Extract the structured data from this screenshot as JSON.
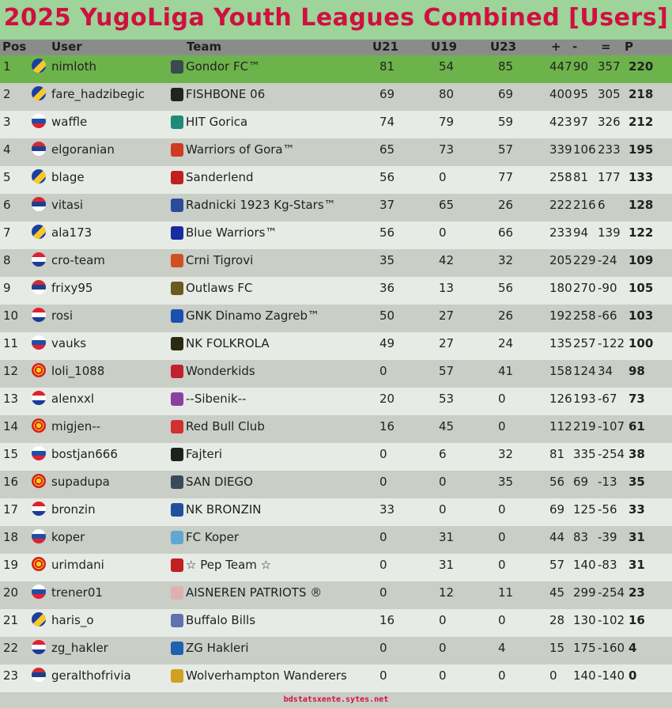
{
  "title": "2025 YugoLiga Youth Leagues Combined [Users]",
  "headers": {
    "pos": "Pos",
    "user": "User",
    "team": "Team",
    "u21": "U21",
    "u19": "U19",
    "u23": "U23",
    "plus": "+",
    "minus": "-",
    "diff": "=",
    "points": "P"
  },
  "flag_colors": {
    "BA": [
      "#1d3e9e",
      "#f7c82c"
    ],
    "SI": [
      "#ffffff",
      "#1d4fa8",
      "#e02030"
    ],
    "RS": [
      "#d32a32",
      "#1d3f8f",
      "#ffffff"
    ],
    "HR": [
      "#e02030",
      "#ffffff",
      "#1a3b9a"
    ],
    "MK": [
      "#d82020",
      "#f8d010"
    ]
  },
  "rows": [
    {
      "pos": "1",
      "flag": "BA",
      "user": "nimloth",
      "team": "Gondor FC™",
      "icon": "#3a4a50",
      "u21": "81",
      "u19": "54",
      "u23": "85",
      "plus": "447",
      "minus": "90",
      "diff": "357",
      "p": "220"
    },
    {
      "pos": "2",
      "flag": "BA",
      "user": "fare_hadzibegic",
      "team": "FISHBONE 06",
      "icon": "#222222",
      "u21": "69",
      "u19": "80",
      "u23": "69",
      "plus": "400",
      "minus": "95",
      "diff": "305",
      "p": "218"
    },
    {
      "pos": "3",
      "flag": "SI",
      "user": "waffle",
      "team": "HIT Gorica",
      "icon": "#1e8a78",
      "u21": "74",
      "u19": "79",
      "u23": "59",
      "plus": "423",
      "minus": "97",
      "diff": "326",
      "p": "212"
    },
    {
      "pos": "4",
      "flag": "RS",
      "user": "elgoranian",
      "team": "Warriors of Gora™",
      "icon": "#d03a20",
      "u21": "65",
      "u19": "73",
      "u23": "57",
      "plus": "339",
      "minus": "106",
      "diff": "233",
      "p": "195"
    },
    {
      "pos": "5",
      "flag": "BA",
      "user": "blage",
      "team": "Sanderlend",
      "icon": "#c02020",
      "u21": "56",
      "u19": "0",
      "u23": "77",
      "plus": "258",
      "minus": "81",
      "diff": "177",
      "p": "133"
    },
    {
      "pos": "6",
      "flag": "RS",
      "user": "vitasi",
      "team": "Radnicki 1923 Kg-Stars™",
      "icon": "#2a4a9a",
      "u21": "37",
      "u19": "65",
      "u23": "26",
      "plus": "222",
      "minus": "216",
      "diff": "6",
      "p": "128"
    },
    {
      "pos": "7",
      "flag": "BA",
      "user": "ala173",
      "team": "Blue Warriors™",
      "icon": "#1a2aa0",
      "u21": "56",
      "u19": "0",
      "u23": "66",
      "plus": "233",
      "minus": "94",
      "diff": "139",
      "p": "122"
    },
    {
      "pos": "8",
      "flag": "HR",
      "user": "cro-team",
      "team": "Crni Tigrovi",
      "icon": "#d05020",
      "u21": "35",
      "u19": "42",
      "u23": "32",
      "plus": "205",
      "minus": "229",
      "diff": "-24",
      "p": "109"
    },
    {
      "pos": "9",
      "flag": "RS",
      "user": "frixy95",
      "team": "Outlaws FC",
      "icon": "#6a5a20",
      "u21": "36",
      "u19": "13",
      "u23": "56",
      "plus": "180",
      "minus": "270",
      "diff": "-90",
      "p": "105"
    },
    {
      "pos": "10",
      "flag": "HR",
      "user": "rosi",
      "team": "GNK Dinamo Zagreb™",
      "icon": "#1a50b0",
      "u21": "50",
      "u19": "27",
      "u23": "26",
      "plus": "192",
      "minus": "258",
      "diff": "-66",
      "p": "103"
    },
    {
      "pos": "11",
      "flag": "SI",
      "user": "vauks",
      "team": "NK FOLKROLA",
      "icon": "#2a2a10",
      "u21": "49",
      "u19": "27",
      "u23": "24",
      "plus": "135",
      "minus": "257",
      "diff": "-122",
      "p": "100"
    },
    {
      "pos": "12",
      "flag": "MK",
      "user": "loli_1088",
      "team": "Wonderkids",
      "icon": "#c02030",
      "u21": "0",
      "u19": "57",
      "u23": "41",
      "plus": "158",
      "minus": "124",
      "diff": "34",
      "p": "98"
    },
    {
      "pos": "13",
      "flag": "HR",
      "user": "alenxxl",
      "team": "--Sibenik--",
      "icon": "#8a40a0",
      "u21": "20",
      "u19": "53",
      "u23": "0",
      "plus": "126",
      "minus": "193",
      "diff": "-67",
      "p": "73"
    },
    {
      "pos": "14",
      "flag": "MK",
      "user": "migjen--",
      "team": "Red Bull Club",
      "icon": "#d03030",
      "u21": "16",
      "u19": "45",
      "u23": "0",
      "plus": "112",
      "minus": "219",
      "diff": "-107",
      "p": "61"
    },
    {
      "pos": "15",
      "flag": "SI",
      "user": "bostjan666",
      "team": "Fajteri",
      "icon": "#202020",
      "u21": "0",
      "u19": "6",
      "u23": "32",
      "plus": "81",
      "minus": "335",
      "diff": "-254",
      "p": "38"
    },
    {
      "pos": "16",
      "flag": "MK",
      "user": "supadupa",
      "team": "SAN DIEGO",
      "icon": "#3a4a5a",
      "u21": "0",
      "u19": "0",
      "u23": "35",
      "plus": "56",
      "minus": "69",
      "diff": "-13",
      "p": "35"
    },
    {
      "pos": "17",
      "flag": "HR",
      "user": "bronzin",
      "team": "NK BRONZIN",
      "icon": "#2050a0",
      "u21": "33",
      "u19": "0",
      "u23": "0",
      "plus": "69",
      "minus": "125",
      "diff": "-56",
      "p": "33"
    },
    {
      "pos": "18",
      "flag": "SI",
      "user": "koper",
      "team": "FC Koper",
      "icon": "#60a8d0",
      "u21": "0",
      "u19": "31",
      "u23": "0",
      "plus": "44",
      "minus": "83",
      "diff": "-39",
      "p": "31"
    },
    {
      "pos": "19",
      "flag": "MK",
      "user": "urimdani",
      "team": "☆ Pep Team ☆",
      "icon": "#c02020",
      "u21": "0",
      "u19": "31",
      "u23": "0",
      "plus": "57",
      "minus": "140",
      "diff": "-83",
      "p": "31"
    },
    {
      "pos": "20",
      "flag": "SI",
      "user": "trener01",
      "team": "AISNEREN PATRIOTS ®",
      "icon": "#e0b0b0",
      "u21": "0",
      "u19": "12",
      "u23": "11",
      "plus": "45",
      "minus": "299",
      "diff": "-254",
      "p": "23"
    },
    {
      "pos": "21",
      "flag": "BA",
      "user": "haris_o",
      "team": "Buffalo Bills",
      "icon": "#6070b0",
      "u21": "16",
      "u19": "0",
      "u23": "0",
      "plus": "28",
      "minus": "130",
      "diff": "-102",
      "p": "16"
    },
    {
      "pos": "22",
      "flag": "HR",
      "user": "zg_hakler",
      "team": "ZG Hakleri",
      "icon": "#2060b0",
      "u21": "0",
      "u19": "0",
      "u23": "4",
      "plus": "15",
      "minus": "175",
      "diff": "-160",
      "p": "4"
    },
    {
      "pos": "23",
      "flag": "RS",
      "user": "geralthofrivia",
      "team": "Wolverhampton Wanderers",
      "icon": "#d0a020",
      "u21": "0",
      "u19": "0",
      "u23": "0",
      "plus": "0",
      "minus": "140",
      "diff": "-140",
      "p": "0"
    }
  ],
  "footer": "bdstatsxente.sytes.net"
}
